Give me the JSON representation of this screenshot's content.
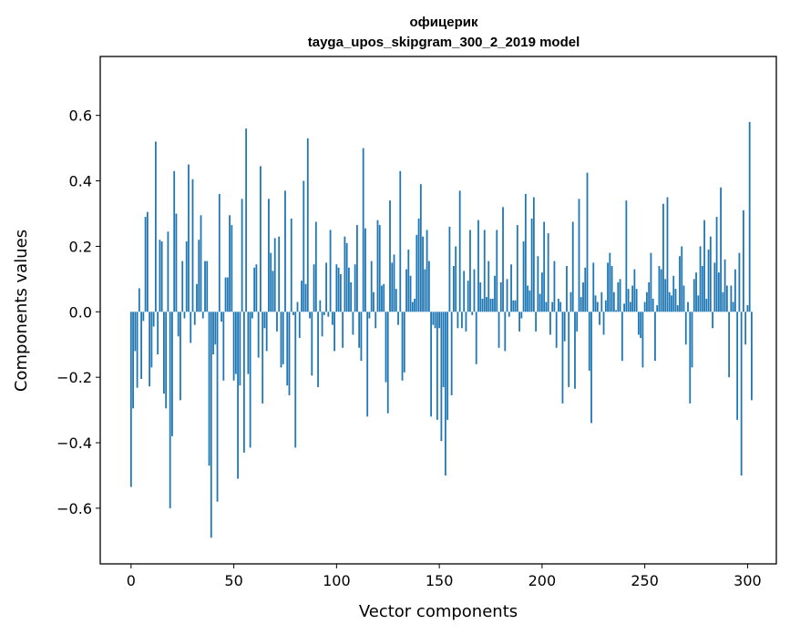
{
  "chart_data": {
    "type": "bar",
    "title": "офицерик",
    "subtitle": "tayga_upos_skipgram_300_2_2019 model",
    "xlabel": "Vector components",
    "ylabel": "Components values",
    "xlim": [
      -15,
      314
    ],
    "ylim": [
      -0.77,
      0.78
    ],
    "x_ticks": [
      0,
      50,
      100,
      150,
      200,
      250,
      300
    ],
    "x_tick_labels": [
      "0",
      "50",
      "100",
      "150",
      "200",
      "250",
      "300"
    ],
    "y_ticks": [
      -0.6,
      -0.4,
      -0.2,
      0.0,
      0.2,
      0.4,
      0.6
    ],
    "y_tick_labels": [
      "−0.6",
      "−0.4",
      "−0.2",
      "0.0",
      "0.2",
      "0.4",
      "0.6"
    ],
    "bar_color": "#1f77b4",
    "grid": false,
    "values": [
      -0.535,
      -0.295,
      -0.12,
      -0.232,
      0.072,
      -0.205,
      -0.028,
      0.29,
      0.305,
      -0.228,
      -0.17,
      -0.045,
      0.52,
      -0.13,
      0.22,
      0.215,
      -0.25,
      -0.295,
      0.245,
      -0.6,
      -0.38,
      0.43,
      0.3,
      -0.075,
      -0.27,
      0.155,
      -0.02,
      0.215,
      0.45,
      -0.095,
      0.405,
      -0.04,
      0.085,
      0.22,
      0.295,
      -0.02,
      0.155,
      0.155,
      -0.47,
      -0.69,
      -0.13,
      -0.1,
      -0.58,
      0.36,
      -0.03,
      -0.21,
      0.105,
      0.105,
      0.295,
      0.265,
      -0.21,
      -0.19,
      -0.51,
      -0.225,
      0.345,
      -0.43,
      0.56,
      -0.19,
      -0.415,
      -0.02,
      0.135,
      0.145,
      -0.14,
      0.445,
      -0.28,
      -0.05,
      -0.12,
      0.345,
      0.18,
      0.125,
      0.225,
      -0.06,
      0.23,
      -0.17,
      -0.16,
      0.37,
      -0.225,
      -0.255,
      0.285,
      -0.01,
      -0.415,
      0.03,
      -0.08,
      0.095,
      0.4,
      0.085,
      0.53,
      -0.02,
      -0.195,
      0.145,
      0.275,
      -0.23,
      0.035,
      -0.075,
      -0.01,
      0.15,
      -0.015,
      0.25,
      -0.04,
      -0.12,
      0.145,
      0.135,
      0.115,
      -0.11,
      0.23,
      0.21,
      0.135,
      0.09,
      -0.07,
      0.145,
      0.265,
      -0.11,
      -0.15,
      0.5,
      0.255,
      -0.32,
      -0.02,
      0.155,
      0.06,
      -0.05,
      0.28,
      0.265,
      0.08,
      0.085,
      -0.215,
      -0.31,
      0.34,
      0.15,
      0.175,
      0.07,
      -0.04,
      0.43,
      -0.21,
      -0.185,
      0.13,
      0.19,
      0.11,
      0.03,
      0.04,
      0.235,
      0.285,
      0.39,
      0.23,
      0.13,
      0.25,
      0.155,
      -0.32,
      -0.04,
      -0.05,
      -0.33,
      -0.05,
      -0.395,
      -0.23,
      -0.5,
      -0.33,
      0.26,
      -0.255,
      0.14,
      0.2,
      -0.05,
      0.37,
      -0.05,
      0.125,
      -0.06,
      0.095,
      0.25,
      -0.01,
      0.13,
      -0.16,
      0.28,
      0.09,
      0.04,
      0.25,
      0.045,
      0.155,
      0.04,
      0.04,
      0.11,
      0.25,
      -0.11,
      0.09,
      0.32,
      -0.12,
      0.1,
      -0.015,
      0.145,
      0.035,
      0.035,
      0.265,
      -0.06,
      -0.02,
      0.215,
      0.36,
      0.08,
      0.065,
      0.285,
      0.35,
      -0.06,
      0.17,
      0.055,
      0.12,
      0.275,
      0.03,
      0.24,
      -0.07,
      0.03,
      0.155,
      -0.11,
      0.04,
      0.03,
      -0.28,
      -0.09,
      0.14,
      -0.23,
      0.06,
      0.275,
      -0.235,
      -0.06,
      0.345,
      0.045,
      0.09,
      0.135,
      0.425,
      -0.18,
      -0.34,
      0.15,
      0.05,
      0.03,
      -0.04,
      0.06,
      -0.07,
      0.035,
      0.15,
      0.18,
      0.14,
      0.06,
      0.005,
      0.09,
      0.1,
      -0.15,
      0.025,
      0.34,
      0.07,
      0.03,
      0.08,
      0.13,
      0.07,
      -0.07,
      -0.08,
      -0.17,
      0.03,
      0.06,
      0.09,
      0.18,
      0.04,
      -0.15,
      0.02,
      0.14,
      0.13,
      0.33,
      0.1,
      0.35,
      0.06,
      0.05,
      0.11,
      0.07,
      0.02,
      0.17,
      0.2,
      0.08,
      -0.1,
      0.03,
      -0.28,
      -0.17,
      0.1,
      0.12,
      0.05,
      0.2,
      0.14,
      0.28,
      0.04,
      0.19,
      0.23,
      -0.05,
      0.15,
      0.29,
      0.12,
      0.38,
      0.06,
      0.16,
      0.08,
      -0.2,
      0.08,
      0.03,
      0.13,
      -0.33,
      0.18,
      -0.5,
      0.31,
      -0.1,
      0.02,
      0.58,
      -0.27
    ]
  }
}
